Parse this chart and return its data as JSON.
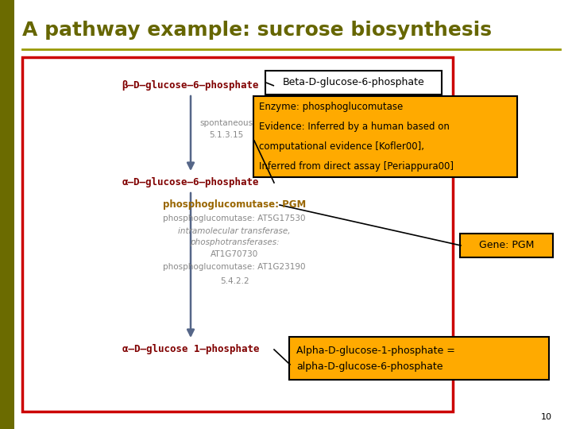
{
  "title": "A pathway example: sucrose biosynthesis",
  "title_color": "#666600",
  "title_fontsize": 18,
  "bg_color": "#ffffff",
  "accent_color": "#999900",
  "red_border": "#cc0000",
  "yellow_bg": "#ffaa00",
  "node1_text": "β–D–glucose–6–phosphate",
  "node2_text": "α–D–glucose–6–phosphate",
  "node3_text": "α–D–glucose 1–phosphate",
  "node_color": "#800000",
  "spontaneous_text": "spontaneous",
  "ec1": "5.1.3.15",
  "enzyme_label_plain": "phosphoglucomutase: ",
  "enzyme_label_bold": "PGM",
  "pgm_color": "#996600",
  "detail1": "phosphoglucomutase: AT5G17530",
  "detail2": "intramolecular transferase,",
  "detail3": "phosphotransferases:",
  "detail4": "AT1G70730",
  "detail5": "phosphoglucomutase: AT1G23190",
  "ec2": "5.4.2.2",
  "detail_color": "#888888",
  "callout1_text": "Beta-D-glucose-6-phosphate",
  "callout2_line1": "Enzyme: phosphoglucomutase",
  "callout2_line2": "Evidence: Inferred by a human based on",
  "callout2_line3": "computational evidence [Kofler00],",
  "callout2_line4": "Inferred from direct assay [Periappura00]",
  "callout3_text": "Gene: PGM",
  "callout4_line1": "Alpha-D-glucose-1-phosphate =",
  "callout4_line2": "alpha-D-glucose-6-phosphate",
  "page_num": "10",
  "arrow_color": "#556688"
}
